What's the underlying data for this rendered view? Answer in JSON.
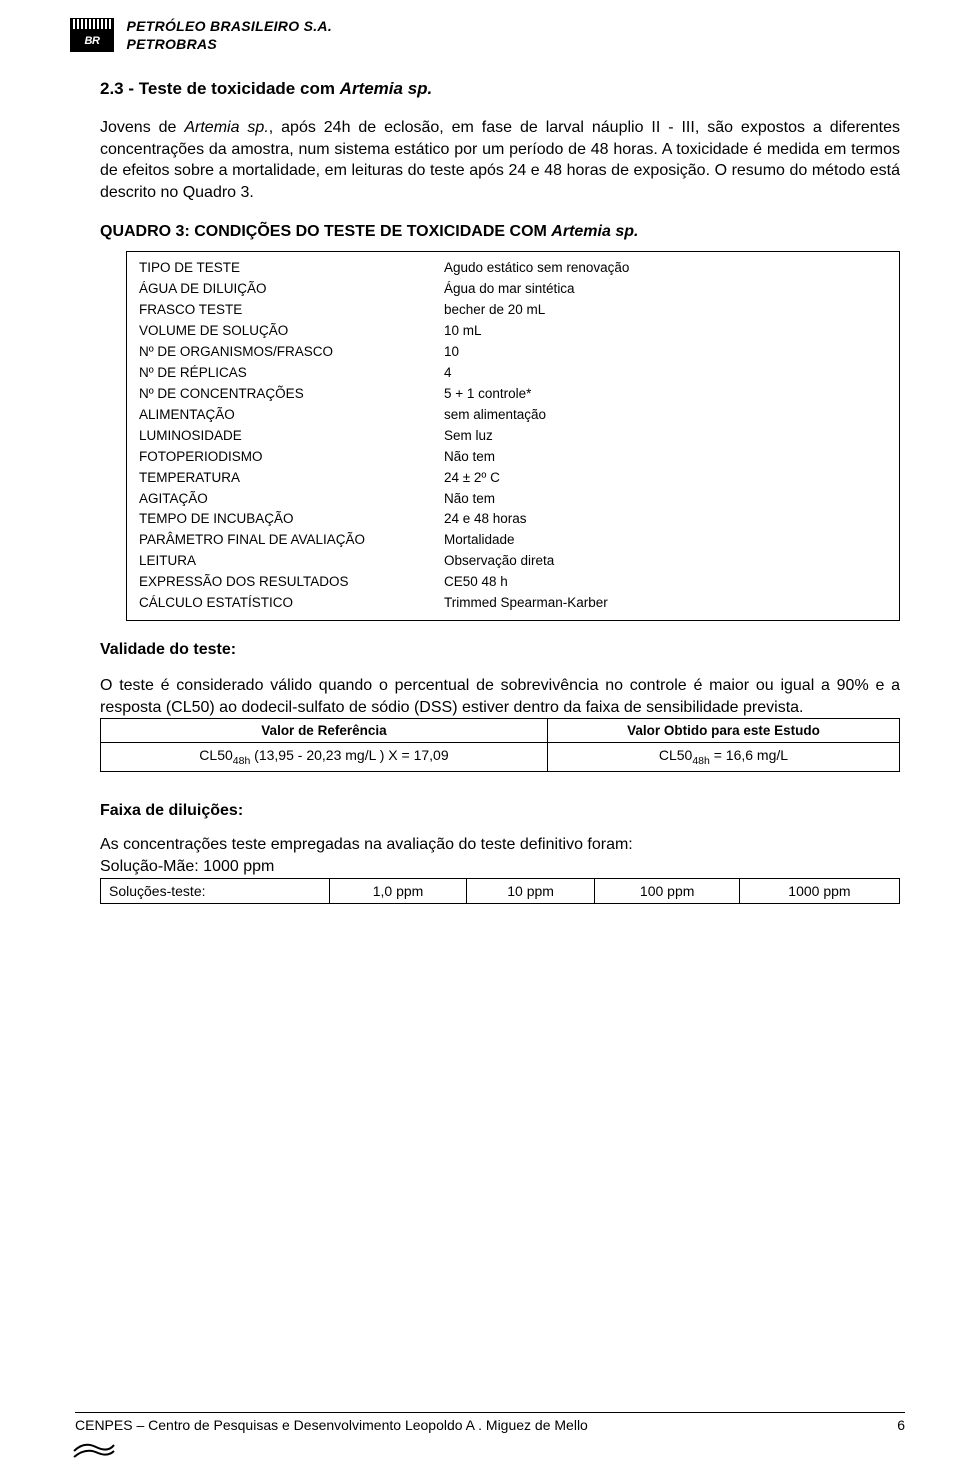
{
  "header": {
    "logo_text": "BR",
    "line1": "PETRÓLEO BRASILEIRO S.A.",
    "line2": "PETROBRAS"
  },
  "section": {
    "number": "2.3",
    "dash": " - ",
    "title_plain": "Teste de toxicidade com ",
    "title_italic": "Artemia sp."
  },
  "paragraph": {
    "p1": "Jovens de ",
    "p1_italic": "Artemia sp.",
    "p2": ", após 24h de eclosão, em fase de larval náuplio II - III, são expostos a diferentes concentrações da amostra, num sistema estático por um período de 48 horas. A toxicidade é medida em termos de efeitos sobre a mortalidade, em leituras do teste após 24 e 48 horas de exposição. O resumo do método está descrito no Quadro 3."
  },
  "quadro": {
    "title_plain": "QUADRO 3: CONDIÇÕES DO TESTE DE TOXICIDADE COM ",
    "title_italic": "Artemia sp.",
    "rows": [
      {
        "label": "TIPO DE TESTE",
        "value": "Agudo estático sem renovação"
      },
      {
        "label": "ÁGUA DE DILUIÇÃO",
        "value": "Água do mar sintética"
      },
      {
        "label": "FRASCO TESTE",
        "value": "becher de 20 mL"
      },
      {
        "label": "VOLUME DE SOLUÇÃO",
        "value": "10 mL"
      },
      {
        "label": "Nº DE ORGANISMOS/FRASCO",
        "value": "10"
      },
      {
        "label": "Nº DE RÉPLICAS",
        "value": "4"
      },
      {
        "label": "Nº DE CONCENTRAÇÕES",
        "value": "5 + 1 controle*"
      },
      {
        "label": "ALIMENTAÇÃO",
        "value": "sem alimentação"
      },
      {
        "label": "LUMINOSIDADE",
        "value": "Sem luz"
      },
      {
        "label": "FOTOPERIODISMO",
        "value": "Não tem"
      },
      {
        "label": "TEMPERATURA",
        "value": "24 ± 2º C"
      },
      {
        "label": "AGITAÇÃO",
        "value": "Não tem"
      },
      {
        "label": "TEMPO DE INCUBAÇÃO",
        "value": "24 e 48 horas"
      },
      {
        "label": "PARÂMETRO FINAL DE AVALIAÇÃO",
        "value": "Mortalidade"
      },
      {
        "label": "LEITURA",
        "value": "Observação direta"
      },
      {
        "label": "EXPRESSÃO DOS RESULTADOS",
        "value": "CE50 48 h"
      },
      {
        "label": "CÁLCULO ESTATÍSTICO",
        "value": "Trimmed Spearman-Karber"
      }
    ]
  },
  "validity": {
    "heading": "Validade do teste:",
    "text": "O teste é considerado válido quando o percentual de sobrevivência no controle é maior ou igual a 90% e a resposta (CL50) ao dodecil-sulfato de sódio (DSS) estiver dentro da faixa de sensibilidade prevista."
  },
  "ref_table": {
    "h1": "Valor de Referência",
    "h2": "Valor Obtido para este Estudo",
    "c1_pre": "CL50",
    "c1_sub": "48h",
    "c1_post": " (13,95 - 20,23 mg/L )  X = 17,09",
    "c2_pre": "CL50",
    "c2_sub": "48h",
    "c2_post": "  =  16,6 mg/L"
  },
  "dilutions": {
    "heading": "Faixa de diluições:",
    "intro": "As concentrações teste empregadas na avaliação do teste definitivo foram:",
    "sol_mae": "Solução-Mãe: 1000 ppm",
    "row_label": "Soluções-teste:",
    "values": [
      "1,0 ppm",
      "10 ppm",
      "100 ppm",
      "1000 ppm"
    ]
  },
  "footer": {
    "text": "CENPES – Centro de Pesquisas e Desenvolvimento Leopoldo A . Miguez de Mello",
    "page": "6"
  }
}
